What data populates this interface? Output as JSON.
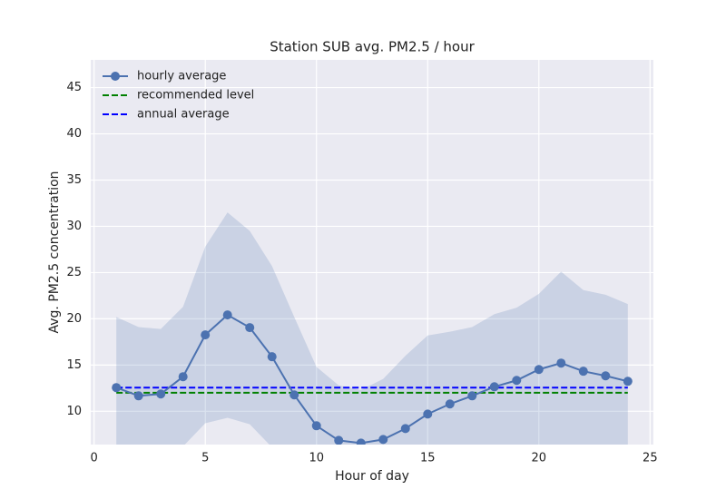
{
  "chart_data": {
    "type": "line",
    "title": "Station SUB avg. PM2.5 / hour",
    "x_label": "Hour of day",
    "y_label": "Avg. PM2.5 concentration",
    "x": [
      1,
      2,
      3,
      4,
      5,
      6,
      7,
      8,
      9,
      10,
      11,
      12,
      13,
      14,
      15,
      16,
      17,
      18,
      19,
      20,
      21,
      22,
      23,
      24
    ],
    "series": [
      {
        "name": "hourly average",
        "color": "#4c72b0",
        "values": [
          12.56,
          11.67,
          11.87,
          13.74,
          18.26,
          20.42,
          19.05,
          15.9,
          11.77,
          8.43,
          6.85,
          6.56,
          6.95,
          8.13,
          9.7,
          10.79,
          11.67,
          12.65,
          13.34,
          14.52,
          15.21,
          14.33,
          13.83,
          13.24
        ]
      }
    ],
    "band": {
      "color": "#4c72b0",
      "upper": [
        20.2,
        19.1,
        18.9,
        21.3,
        27.8,
        31.5,
        29.5,
        25.7,
        20.2,
        14.8,
        12.8,
        12.3,
        13.5,
        16,
        18.2,
        18.6,
        19.1,
        20.5,
        21.2,
        22.7,
        25.1,
        23.1,
        22.6,
        21.6
      ],
      "lower": [
        4.9,
        4.2,
        4.8,
        6.2,
        8.7,
        9.3,
        8.6,
        6.1,
        3.3,
        2.1,
        0.9,
        0.8,
        0.4,
        0.3,
        1.2,
        3.0,
        4.2,
        4.8,
        5.5,
        6.3,
        5.3,
        5.6,
        5.1,
        4.9
      ]
    },
    "hlines": [
      {
        "name": "recommended level",
        "color": "#008000",
        "value": 12
      },
      {
        "name": "annual average",
        "color": "#0000ff",
        "value": 12.56
      }
    ],
    "xlim": [
      -0.15,
      25.15
    ],
    "ylim": [
      6.4,
      48
    ],
    "xticks": [
      0,
      5,
      10,
      15,
      20,
      25
    ],
    "yticks": [
      10,
      15,
      20,
      25,
      30,
      35,
      40,
      45
    ],
    "grid": true,
    "legend": "upper left"
  }
}
